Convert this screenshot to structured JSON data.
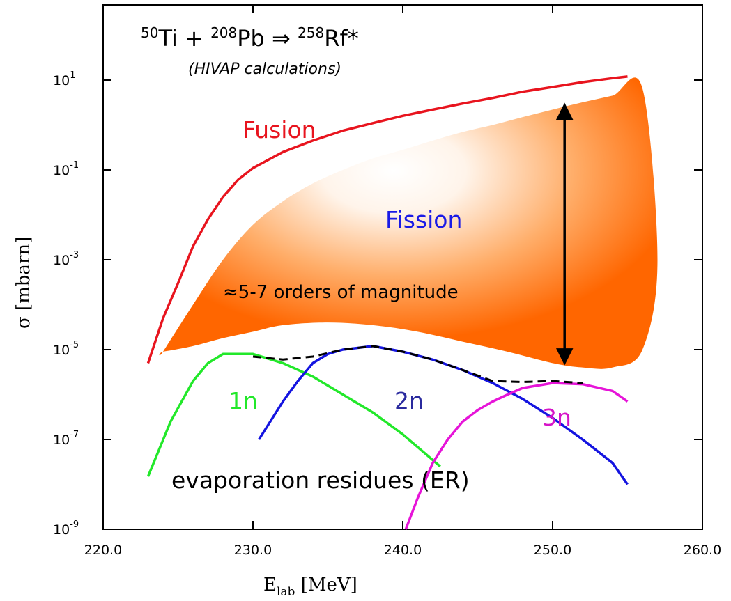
{
  "chart_data": {
    "type": "line",
    "title": {
      "beam_mass": "50",
      "beam": "Ti",
      "target_mass": "208",
      "target": "Pb",
      "arrow": "⇒",
      "cn_mass": "258",
      "cn": "Rf*"
    },
    "subtitle": "(HIVAP calculations)",
    "xlabel": {
      "main": "E",
      "sub": "lab",
      "unit": " [MeV]"
    },
    "ylabel": "σ [mbarn]",
    "xlim": [
      220,
      260
    ],
    "ylim": [
      1e-09,
      10.0
    ],
    "log_y": true,
    "grid": false,
    "x_ticks": [
      220,
      230,
      240,
      250,
      260
    ],
    "x_tick_labels": [
      "220.0",
      "230.0",
      "240.0",
      "250.0",
      "260.0"
    ],
    "y_ticks": [
      10.0,
      0.1,
      0.001,
      1e-05,
      1e-07,
      1e-09
    ],
    "y_tick_labels": [
      {
        "base": "10",
        "exp": "1"
      },
      {
        "base": "10",
        "exp": "-1"
      },
      {
        "base": "10",
        "exp": "-3"
      },
      {
        "base": "10",
        "exp": "-5"
      },
      {
        "base": "10",
        "exp": "-7"
      },
      {
        "base": "10",
        "exp": "-9"
      }
    ],
    "series": [
      {
        "name": "Fusion",
        "color": "#e8141e",
        "dash": false,
        "x": [
          223,
          224,
          225,
          226,
          227,
          228,
          229,
          230,
          232,
          234,
          236,
          238,
          240,
          242,
          244,
          246,
          248,
          250,
          252,
          254,
          255
        ],
        "y": [
          5e-06,
          5e-05,
          0.0003,
          0.002,
          0.008,
          0.025,
          0.06,
          0.11,
          0.25,
          0.45,
          0.75,
          1.1,
          1.6,
          2.2,
          3.0,
          4.0,
          5.5,
          7.0,
          9.0,
          11.0,
          12.0
        ]
      },
      {
        "name": "1n",
        "color": "#22e82a",
        "dash": false,
        "x": [
          223,
          224.5,
          226,
          227,
          228,
          230,
          232,
          234,
          236,
          238,
          240,
          242.5
        ],
        "y": [
          1.5e-08,
          2.5e-07,
          2e-06,
          5e-06,
          8e-06,
          8e-06,
          5e-06,
          2.5e-06,
          1e-06,
          4e-07,
          1.3e-07,
          2.5e-08
        ]
      },
      {
        "name": "2n",
        "color": "#1414e0",
        "dash": false,
        "x": [
          230.4,
          232,
          233,
          234,
          235,
          236,
          238,
          240,
          242,
          244,
          246,
          248,
          250,
          252,
          254,
          255
        ],
        "y": [
          1e-07,
          7e-07,
          2e-06,
          5e-06,
          8e-06,
          1e-05,
          1.2e-05,
          9e-06,
          6e-06,
          3.5e-06,
          1.8e-06,
          8e-07,
          3e-07,
          1e-07,
          3e-08,
          1e-08
        ]
      },
      {
        "name": "3n",
        "color": "#e614d8",
        "dash": false,
        "x": [
          240.2,
          241,
          242,
          243,
          244,
          245,
          246,
          247,
          248,
          250,
          252,
          254,
          255
        ],
        "y": [
          1e-09,
          5e-09,
          3e-08,
          1e-07,
          2.5e-07,
          4.5e-07,
          7e-07,
          1e-06,
          1.4e-06,
          1.8e-06,
          1.7e-06,
          1.2e-06,
          7e-07
        ]
      },
      {
        "name": "",
        "color": "#000000",
        "dash": true,
        "x": [
          230,
          232,
          234,
          236,
          238,
          240,
          242,
          244,
          246,
          248,
          250,
          252
        ],
        "y": [
          7e-06,
          6e-06,
          7e-06,
          1e-05,
          1.2e-05,
          9e-06,
          6e-06,
          3.5e-06,
          2e-06,
          1.9e-06,
          2e-06,
          1.8e-06
        ]
      }
    ],
    "fission_region": {
      "label": "Fission",
      "upper_x": [
        224,
        226,
        228,
        230,
        232,
        234,
        236,
        238,
        240,
        242,
        244,
        246,
        248,
        250,
        252,
        254,
        256
      ],
      "upper_y": [
        9e-06,
        0.0001,
        0.001,
        0.006,
        0.02,
        0.05,
        0.1,
        0.18,
        0.28,
        0.45,
        0.7,
        1.0,
        1.5,
        2.2,
        3.2,
        4.5,
        6.5
      ],
      "lower_x": [
        224,
        226,
        228,
        230,
        232,
        235,
        238,
        241,
        244,
        247,
        250,
        252,
        254,
        256,
        257
      ],
      "lower_y": [
        9e-06,
        1.2e-05,
        1.8e-05,
        2.5e-05,
        3.5e-05,
        4e-05,
        3.5e-05,
        2.5e-05,
        1.5e-05,
        9e-06,
        5e-06,
        4e-06,
        4e-06,
        1e-05,
        0.001
      ],
      "color": "#ff6600"
    },
    "arrow": {
      "x": 250.8,
      "y_from": 4e-06,
      "y_to": 3.5
    },
    "annotations": {
      "fusion": "Fusion",
      "fission": "Fission",
      "magnitude": "≈5-7 orders of magnitude",
      "n1": "1n",
      "n2": "2n",
      "n3": "3n",
      "er": "evaporation residues (ER)"
    },
    "annotation_colors": {
      "fusion": "#e8141e",
      "fission": "#1a1ae6",
      "n1": "#22e82a",
      "n2": "#2a2a9e",
      "n3": "#d614c8",
      "black": "#000000"
    }
  }
}
